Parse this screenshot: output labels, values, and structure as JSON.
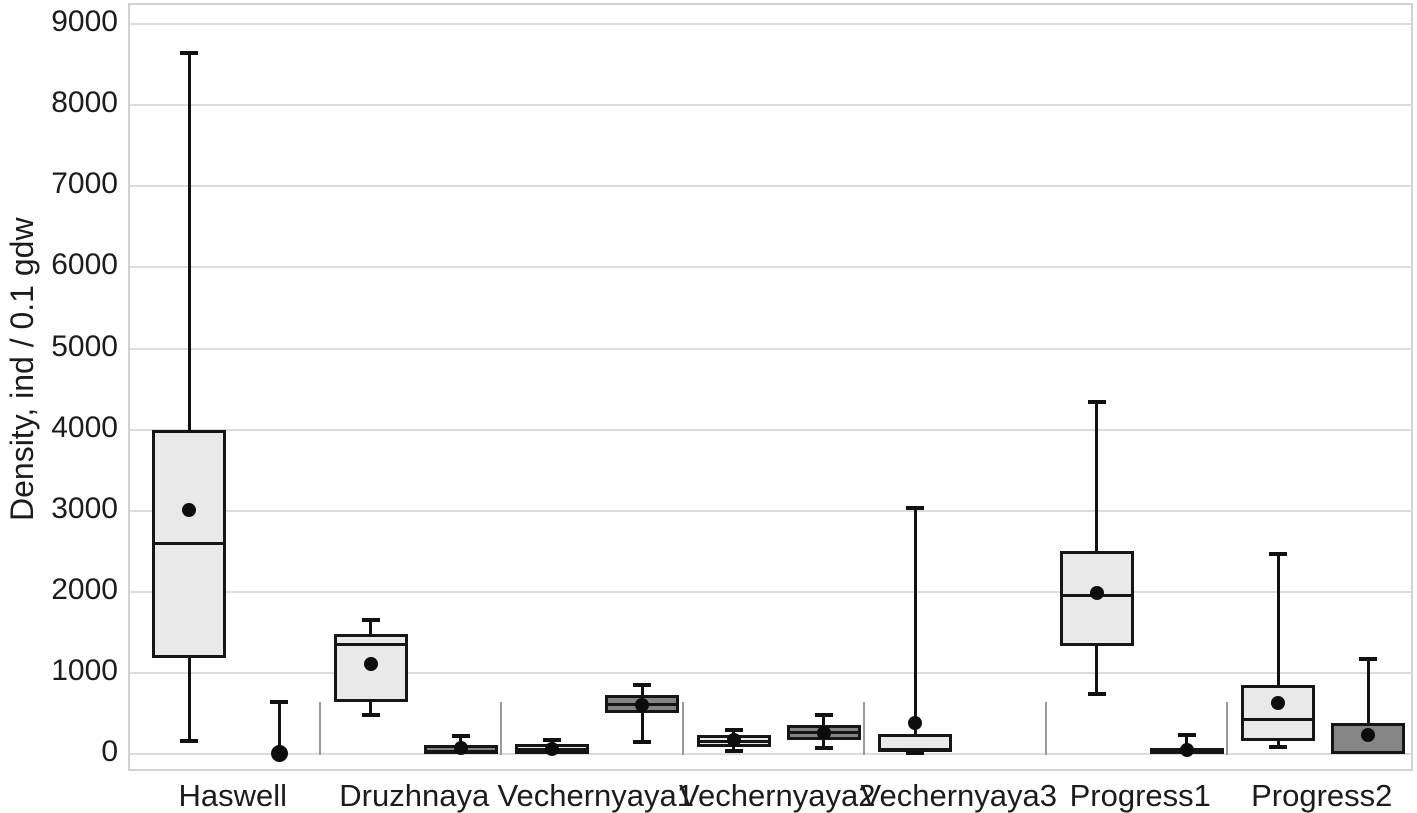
{
  "chart_data": {
    "type": "boxplot",
    "title": "",
    "xlabel": "",
    "ylabel": "Density, ind / 0.1 gdw",
    "ylim": [
      0,
      9250
    ],
    "yticks": [
      0,
      1000,
      2000,
      3000,
      4000,
      5000,
      6000,
      7000,
      8000,
      9000
    ],
    "grid": "horizontal",
    "legend": "none",
    "groups": [
      {
        "label": "Haswell",
        "boxes": [
          {
            "style": "light",
            "q1": 1180,
            "median": 2600,
            "q3": 4000,
            "mean": 3010,
            "whisker_low": 150,
            "whisker_high": 8660
          },
          {
            "style": "point",
            "q1": 0,
            "median": null,
            "q3": 0,
            "mean": 10,
            "whisker_low": 0,
            "whisker_high": 650
          }
        ]
      },
      {
        "label": "Druzhnaya",
        "boxes": [
          {
            "style": "light",
            "q1": 640,
            "median": 1350,
            "q3": 1480,
            "mean": 1110,
            "whisker_low": 470,
            "whisker_high": 1660
          },
          {
            "style": "dark",
            "q1": 0,
            "median": 30,
            "q3": 110,
            "mean": 80,
            "whisker_low": 0,
            "whisker_high": 235
          }
        ]
      },
      {
        "label": "Vechernyaya1",
        "boxes": [
          {
            "style": "light",
            "q1": 0,
            "median": 60,
            "q3": 120,
            "mean": 60,
            "whisker_low": 0,
            "whisker_high": 190
          },
          {
            "style": "dark",
            "q1": 505,
            "median": 615,
            "q3": 730,
            "mean": 605,
            "whisker_low": 135,
            "whisker_high": 865
          }
        ]
      },
      {
        "label": "Vechernyaya2",
        "boxes": [
          {
            "style": "light",
            "q1": 85,
            "median": 160,
            "q3": 235,
            "mean": 170,
            "whisker_low": 25,
            "whisker_high": 310
          },
          {
            "style": "dark",
            "q1": 170,
            "median": 260,
            "q3": 360,
            "mean": 260,
            "whisker_low": 60,
            "whisker_high": 495
          }
        ]
      },
      {
        "label": "Vechernyaya3",
        "boxes": [
          {
            "style": "light",
            "q1": 25,
            "median": 60,
            "q3": 245,
            "mean": 380,
            "whisker_low": 0,
            "whisker_high": 3050
          }
        ]
      },
      {
        "label": "Progress1",
        "boxes": [
          {
            "style": "light",
            "q1": 1330,
            "median": 1960,
            "q3": 2500,
            "mean": 1990,
            "whisker_low": 730,
            "whisker_high": 4350
          },
          {
            "style": "dark",
            "q1": 0,
            "median": 30,
            "q3": 70,
            "mean": 55,
            "whisker_low": 0,
            "whisker_high": 245
          }
        ]
      },
      {
        "label": "Progress2",
        "boxes": [
          {
            "style": "light",
            "q1": 160,
            "median": 430,
            "q3": 850,
            "mean": 630,
            "whisker_low": 75,
            "whisker_high": 2480
          },
          {
            "style": "dark",
            "q1": 0,
            "median": 20,
            "q3": 385,
            "mean": 235,
            "whisker_low": 0,
            "whisker_high": 1180
          }
        ]
      }
    ]
  },
  "colors": {
    "light_fill": "#e9e9e9",
    "dark_fill": "#858585",
    "box_border": "#161616",
    "whisker": "#111111",
    "mean_dot": "#0d0d0d",
    "gridline": "#dcdcdc",
    "plot_border": "#d2d2d2",
    "group_separator": "#9b9b9b",
    "text": "#1c1c1c",
    "background": "#ffffff"
  }
}
